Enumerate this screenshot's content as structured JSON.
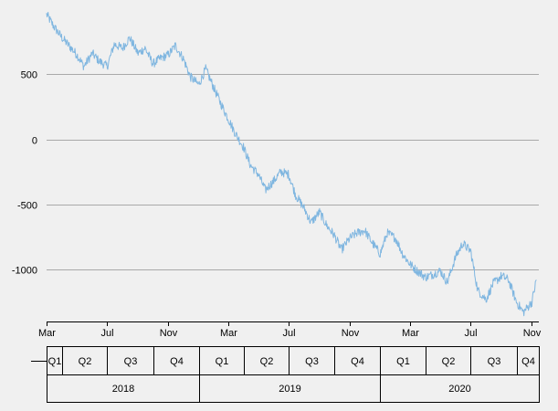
{
  "chart_data": {
    "type": "line",
    "title": "",
    "xlabel": "",
    "ylabel": "",
    "y_ticks": [
      500,
      0,
      -500,
      -1000
    ],
    "y_tick_labels": [
      "500",
      "0",
      "-500",
      "-1000"
    ],
    "ylim": [
      -1400,
      1000
    ],
    "xlim": [
      "2018-03-01",
      "2020-11-15"
    ],
    "grid": "horizontal",
    "month_ticks": [
      {
        "date": "2018-03-01",
        "label": "Mar"
      },
      {
        "date": "2018-07-01",
        "label": "Jul"
      },
      {
        "date": "2018-11-01",
        "label": "Nov"
      },
      {
        "date": "2019-03-01",
        "label": "Mar"
      },
      {
        "date": "2019-07-01",
        "label": "Jul"
      },
      {
        "date": "2019-11-01",
        "label": "Nov"
      },
      {
        "date": "2020-03-01",
        "label": "Mar"
      },
      {
        "date": "2020-07-01",
        "label": "Jul"
      },
      {
        "date": "2020-11-01",
        "label": "Nov"
      }
    ],
    "quarter_row": [
      {
        "label": "Q1",
        "start": "2018-03-01",
        "end": "2018-04-01"
      },
      {
        "label": "Q2",
        "start": "2018-04-01",
        "end": "2018-07-01"
      },
      {
        "label": "Q3",
        "start": "2018-07-01",
        "end": "2018-10-01"
      },
      {
        "label": "Q4",
        "start": "2018-10-01",
        "end": "2019-01-01"
      },
      {
        "label": "Q1",
        "start": "2019-01-01",
        "end": "2019-04-01"
      },
      {
        "label": "Q2",
        "start": "2019-04-01",
        "end": "2019-07-01"
      },
      {
        "label": "Q3",
        "start": "2019-07-01",
        "end": "2019-10-01"
      },
      {
        "label": "Q4",
        "start": "2019-10-01",
        "end": "2020-01-01"
      },
      {
        "label": "Q1",
        "start": "2020-01-01",
        "end": "2020-04-01"
      },
      {
        "label": "Q2",
        "start": "2020-04-01",
        "end": "2020-07-01"
      },
      {
        "label": "Q3",
        "start": "2020-07-01",
        "end": "2020-10-01"
      },
      {
        "label": "Q4",
        "start": "2020-10-01",
        "end": "2020-11-15"
      }
    ],
    "year_row": [
      {
        "label": "2018",
        "start": "2018-03-01",
        "end": "2019-01-01"
      },
      {
        "label": "2019",
        "start": "2019-01-01",
        "end": "2020-01-01"
      },
      {
        "label": "2020",
        "start": "2020-01-01",
        "end": "2020-11-15"
      }
    ],
    "series_color": "#7fb6e0",
    "series": [
      {
        "x": [
          "2018-03-01",
          "2018-03-15",
          "2018-04-01",
          "2018-04-15",
          "2018-05-01",
          "2018-05-15",
          "2018-06-01",
          "2018-06-15",
          "2018-07-01",
          "2018-07-15",
          "2018-08-01",
          "2018-08-15",
          "2018-09-01",
          "2018-09-15",
          "2018-10-01",
          "2018-10-15",
          "2018-11-01",
          "2018-11-15",
          "2018-12-01",
          "2018-12-15",
          "2019-01-01",
          "2019-01-15",
          "2019-02-01",
          "2019-02-15",
          "2019-03-01",
          "2019-03-15",
          "2019-04-01",
          "2019-04-15",
          "2019-05-01",
          "2019-05-15",
          "2019-06-01",
          "2019-06-15",
          "2019-07-01",
          "2019-07-15",
          "2019-08-01",
          "2019-08-15",
          "2019-09-01",
          "2019-09-15",
          "2019-10-01",
          "2019-10-15",
          "2019-11-01",
          "2019-11-15",
          "2019-12-01",
          "2019-12-15",
          "2020-01-01",
          "2020-01-15",
          "2020-02-01",
          "2020-02-15",
          "2020-03-01",
          "2020-03-15",
          "2020-04-01",
          "2020-04-15",
          "2020-05-01",
          "2020-05-15",
          "2020-06-01",
          "2020-06-15",
          "2020-07-01",
          "2020-07-15",
          "2020-08-01",
          "2020-08-15",
          "2020-09-01",
          "2020-09-15",
          "2020-10-01",
          "2020-10-15",
          "2020-11-01",
          "2020-11-10"
        ],
        "y": [
          960,
          870,
          780,
          720,
          650,
          560,
          660,
          600,
          560,
          730,
          700,
          780,
          660,
          700,
          580,
          620,
          650,
          720,
          620,
          480,
          420,
          540,
          390,
          270,
          160,
          50,
          -60,
          -200,
          -270,
          -390,
          -320,
          -250,
          -270,
          -430,
          -530,
          -640,
          -560,
          -660,
          -740,
          -850,
          -760,
          -720,
          -700,
          -790,
          -880,
          -720,
          -760,
          -880,
          -960,
          -1010,
          -1060,
          -1040,
          -1010,
          -1100,
          -900,
          -800,
          -860,
          -1160,
          -1230,
          -1110,
          -1050,
          -1080,
          -1250,
          -1330,
          -1250,
          -1080
        ]
      }
    ]
  }
}
